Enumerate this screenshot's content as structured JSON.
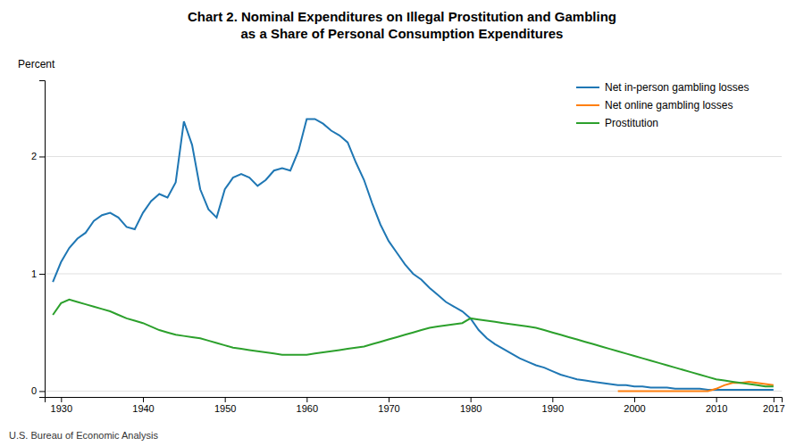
{
  "chart_data": {
    "type": "line",
    "title": "Chart 2. Nominal Expenditures on Illegal Prostitution and Gambling\nas a Share of Personal Consumption Expenditures",
    "ylabel": "Percent",
    "annotations": [
      "U.S. Bureau of Economic Analysis"
    ],
    "xlim": [
      1928,
      2018
    ],
    "ylim": [
      -0.05,
      2.65
    ],
    "yticks": [
      0,
      1,
      2
    ],
    "xticks": [
      1930,
      1940,
      1950,
      1960,
      1970,
      1980,
      1990,
      2000,
      2010,
      2017
    ],
    "grid": true,
    "legend": "upper right",
    "series": [
      {
        "name": "Net in-person gambling losses",
        "x": [
          1929,
          1930,
          1931,
          1932,
          1933,
          1934,
          1935,
          1936,
          1937,
          1938,
          1939,
          1940,
          1941,
          1942,
          1943,
          1944,
          1945,
          1946,
          1947,
          1948,
          1949,
          1950,
          1951,
          1952,
          1953,
          1954,
          1955,
          1956,
          1957,
          1958,
          1959,
          1960,
          1961,
          1962,
          1963,
          1964,
          1965,
          1966,
          1967,
          1968,
          1969,
          1970,
          1971,
          1972,
          1973,
          1974,
          1975,
          1976,
          1977,
          1978,
          1979,
          1980,
          1981,
          1982,
          1983,
          1984,
          1985,
          1986,
          1987,
          1988,
          1989,
          1990,
          1991,
          1992,
          1993,
          1994,
          1995,
          1996,
          1997,
          1998,
          1999,
          2000,
          2001,
          2002,
          2003,
          2004,
          2005,
          2006,
          2007,
          2008,
          2009,
          2010,
          2011,
          2012,
          2013,
          2014,
          2015,
          2016,
          2017
        ],
        "values": [
          0.93,
          1.1,
          1.22,
          1.3,
          1.35,
          1.45,
          1.5,
          1.52,
          1.48,
          1.4,
          1.38,
          1.52,
          1.62,
          1.68,
          1.65,
          1.78,
          2.3,
          2.1,
          1.72,
          1.55,
          1.48,
          1.72,
          1.82,
          1.85,
          1.82,
          1.75,
          1.8,
          1.88,
          1.9,
          1.88,
          2.05,
          2.32,
          2.32,
          2.28,
          2.22,
          2.18,
          2.12,
          1.95,
          1.8,
          1.6,
          1.42,
          1.28,
          1.18,
          1.08,
          1.0,
          0.95,
          0.88,
          0.82,
          0.76,
          0.72,
          0.68,
          0.62,
          0.52,
          0.45,
          0.4,
          0.36,
          0.32,
          0.28,
          0.25,
          0.22,
          0.2,
          0.17,
          0.14,
          0.12,
          0.1,
          0.09,
          0.08,
          0.07,
          0.06,
          0.05,
          0.05,
          0.04,
          0.04,
          0.03,
          0.03,
          0.03,
          0.02,
          0.02,
          0.02,
          0.02,
          0.01,
          0.01,
          0.01,
          0.01,
          0.01,
          0.01,
          0.01,
          0.01,
          0.01
        ]
      },
      {
        "name": "Net online gambling losses",
        "x": [
          1998,
          1999,
          2000,
          2001,
          2002,
          2003,
          2004,
          2005,
          2006,
          2007,
          2008,
          2009,
          2010,
          2011,
          2012,
          2013,
          2014,
          2015,
          2016,
          2017
        ],
        "values": [
          0.0,
          0.0,
          0.0,
          0.0,
          0.0,
          0.0,
          0.0,
          0.0,
          0.0,
          0.0,
          0.0,
          0.0,
          0.02,
          0.05,
          0.07,
          0.07,
          0.08,
          0.07,
          0.06,
          0.05
        ]
      },
      {
        "name": "Prostitution",
        "x": [
          1929,
          1930,
          1931,
          1932,
          1933,
          1934,
          1935,
          1936,
          1937,
          1938,
          1939,
          1940,
          1941,
          1942,
          1943,
          1944,
          1945,
          1946,
          1947,
          1948,
          1949,
          1950,
          1951,
          1952,
          1953,
          1954,
          1955,
          1956,
          1957,
          1958,
          1959,
          1960,
          1961,
          1962,
          1963,
          1964,
          1965,
          1966,
          1967,
          1968,
          1969,
          1970,
          1971,
          1972,
          1973,
          1974,
          1975,
          1976,
          1977,
          1978,
          1979,
          1980,
          1981,
          1982,
          1983,
          1984,
          1985,
          1986,
          1987,
          1988,
          1989,
          1990,
          1991,
          1992,
          1993,
          1994,
          1995,
          1996,
          1997,
          1998,
          1999,
          2000,
          2001,
          2002,
          2003,
          2004,
          2005,
          2006,
          2007,
          2008,
          2009,
          2010,
          2011,
          2012,
          2013,
          2014,
          2015,
          2016,
          2017
        ],
        "values": [
          0.65,
          0.75,
          0.78,
          0.76,
          0.74,
          0.72,
          0.7,
          0.68,
          0.65,
          0.62,
          0.6,
          0.58,
          0.55,
          0.52,
          0.5,
          0.48,
          0.47,
          0.46,
          0.45,
          0.43,
          0.41,
          0.39,
          0.37,
          0.36,
          0.35,
          0.34,
          0.33,
          0.32,
          0.31,
          0.31,
          0.31,
          0.31,
          0.32,
          0.33,
          0.34,
          0.35,
          0.36,
          0.37,
          0.38,
          0.4,
          0.42,
          0.44,
          0.46,
          0.48,
          0.5,
          0.52,
          0.54,
          0.55,
          0.56,
          0.57,
          0.58,
          0.62,
          0.61,
          0.6,
          0.59,
          0.58,
          0.57,
          0.56,
          0.55,
          0.54,
          0.52,
          0.5,
          0.48,
          0.46,
          0.44,
          0.42,
          0.4,
          0.38,
          0.36,
          0.34,
          0.32,
          0.3,
          0.28,
          0.26,
          0.24,
          0.22,
          0.2,
          0.18,
          0.16,
          0.14,
          0.12,
          0.1,
          0.09,
          0.08,
          0.07,
          0.06,
          0.05,
          0.04,
          0.04
        ]
      }
    ]
  }
}
